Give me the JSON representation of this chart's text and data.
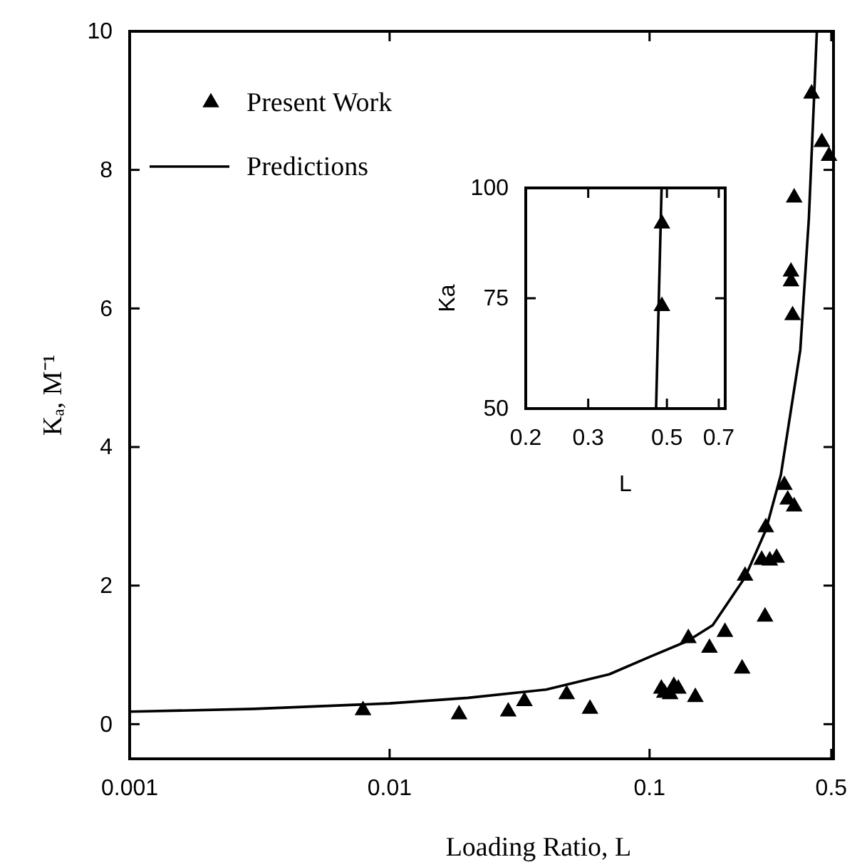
{
  "chart_data": [
    {
      "type": "scatter",
      "xlabel": "Loading Ratio, L",
      "ylabel": "Kₐ, M⁻¹",
      "log": "x",
      "grid": false,
      "legend": "top left",
      "xlim": [
        0.001,
        0.51
      ],
      "xticks": [
        0.001,
        0.01,
        0.1,
        0.5
      ],
      "ylim": [
        -0.5,
        10
      ],
      "yticks": [
        0,
        2,
        4,
        6,
        8,
        10
      ],
      "series": [
        {
          "name": "Present Work",
          "marker": "triangle",
          "color": "#000000",
          "x": [
            0.0079,
            0.0185,
            0.0286,
            0.033,
            0.048,
            0.059,
            0.111,
            0.114,
            0.12,
            0.124,
            0.129,
            0.15,
            0.141,
            0.17,
            0.195,
            0.227,
            0.233,
            0.278,
            0.27,
            0.29,
            0.308,
            0.28,
            0.33,
            0.34,
            0.36,
            0.35,
            0.35,
            0.355,
            0.36,
            0.42,
            0.46,
            0.49
          ],
          "values": [
            0.2,
            0.14,
            0.18,
            0.33,
            0.43,
            0.22,
            0.51,
            0.45,
            0.43,
            0.55,
            0.51,
            0.39,
            1.24,
            1.1,
            1.33,
            0.8,
            2.14,
            1.55,
            2.37,
            2.36,
            2.4,
            2.84,
            3.45,
            3.24,
            3.14,
            6.53,
            6.39,
            5.9,
            7.6,
            9.1,
            8.4,
            8.2
          ]
        },
        {
          "name": "Predictions",
          "type": "line",
          "marker": "none",
          "line_style": "solid",
          "color": "#000000",
          "x": [
            0.001,
            0.003,
            0.01,
            0.02,
            0.04,
            0.07,
            0.1,
            0.14,
            0.175,
            0.233,
            0.28,
            0.32,
            0.38,
            0.41,
            0.43,
            0.44
          ],
          "values": [
            0.18,
            0.22,
            0.3,
            0.38,
            0.5,
            0.72,
            0.97,
            1.2,
            1.43,
            2.12,
            2.8,
            3.6,
            5.4,
            7.3,
            9.1,
            10
          ]
        }
      ]
    },
    {
      "type": "scatter",
      "xlabel": "L",
      "ylabel": "Ka",
      "log": "x",
      "grid": false,
      "legend": false,
      "xlim": [
        0.2,
        0.73
      ],
      "xticks": [
        0.2,
        0.3,
        0.5,
        0.7
      ],
      "ylim": [
        50,
        100
      ],
      "yticks": [
        50,
        75,
        100
      ],
      "series": [
        {
          "marker": "triangle",
          "color": "#000000",
          "x": [
            0.484,
            0.484
          ],
          "values": [
            91.9,
            73.2
          ]
        },
        {
          "type": "line",
          "marker": "none",
          "line_style": "solid",
          "color": "#000000",
          "x": [
            0.466,
            0.483
          ],
          "values": [
            50,
            100
          ]
        }
      ]
    }
  ]
}
